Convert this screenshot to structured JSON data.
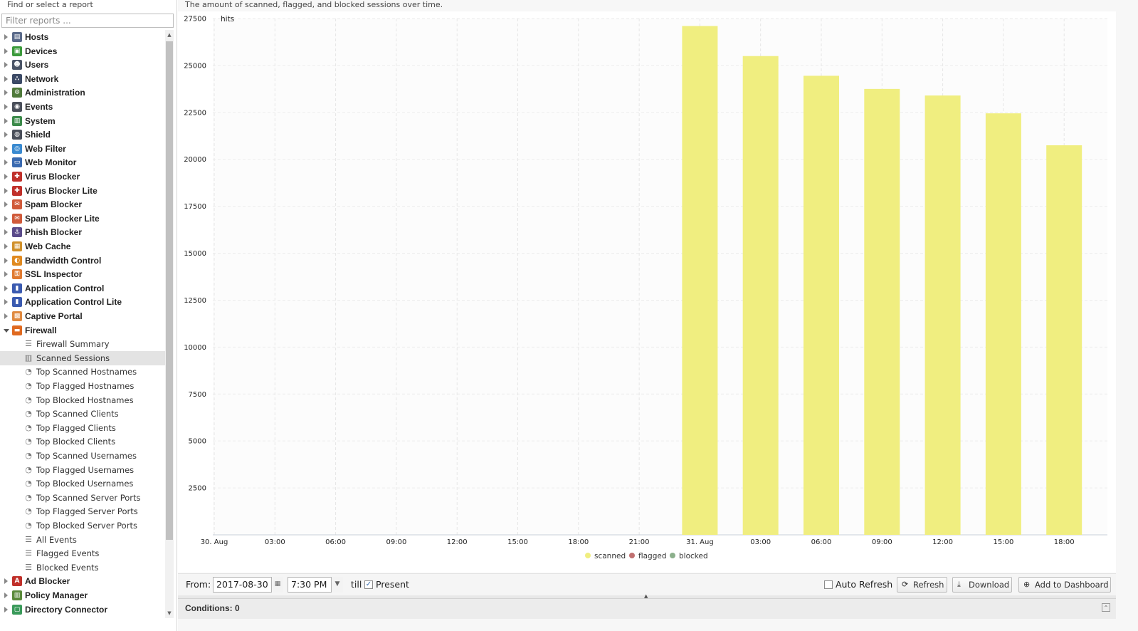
{
  "sidebar": {
    "header": "Find or select a report",
    "filter_placeholder": "Filter reports ...",
    "categories_top": [
      {
        "label": "Hosts",
        "icon": "hosts-icon",
        "color": "#5a6a8a",
        "glyph": "▤"
      },
      {
        "label": "Devices",
        "icon": "devices-icon",
        "color": "#3b9a3b",
        "glyph": "▣"
      },
      {
        "label": "Users",
        "icon": "users-icon",
        "color": "#4a5466",
        "glyph": "☻"
      },
      {
        "label": "Network",
        "icon": "network-icon",
        "color": "#3c4a66",
        "glyph": "∴"
      },
      {
        "label": "Administration",
        "icon": "administration-icon",
        "color": "#4f7a3a",
        "glyph": "⚙"
      },
      {
        "label": "Events",
        "icon": "events-icon",
        "color": "#4a4f5a",
        "glyph": "◉"
      },
      {
        "label": "System",
        "icon": "system-icon",
        "color": "#3b8a4a",
        "glyph": "▥"
      },
      {
        "label": "Shield",
        "icon": "shield-icon",
        "color": "#4a4f5a",
        "glyph": "◍"
      },
      {
        "label": "Web Filter",
        "icon": "web-filter-icon",
        "color": "#3a8ad0",
        "glyph": "◎"
      },
      {
        "label": "Web Monitor",
        "icon": "web-monitor-icon",
        "color": "#3a6ab0",
        "glyph": "▭"
      },
      {
        "label": "Virus Blocker",
        "icon": "virus-blocker-icon",
        "color": "#c0302a",
        "glyph": "✚"
      },
      {
        "label": "Virus Blocker Lite",
        "icon": "virus-blocker-lite-icon",
        "color": "#c0302a",
        "glyph": "✚"
      },
      {
        "label": "Spam Blocker",
        "icon": "spam-blocker-icon",
        "color": "#d05a3a",
        "glyph": "✉"
      },
      {
        "label": "Spam Blocker Lite",
        "icon": "spam-blocker-lite-icon",
        "color": "#d05a3a",
        "glyph": "✉"
      },
      {
        "label": "Phish Blocker",
        "icon": "phish-blocker-icon",
        "color": "#5a4a8a",
        "glyph": "⚓"
      },
      {
        "label": "Web Cache",
        "icon": "web-cache-icon",
        "color": "#d0902a",
        "glyph": "▦"
      },
      {
        "label": "Bandwidth Control",
        "icon": "bandwidth-control-icon",
        "color": "#e08a20",
        "glyph": "◐"
      },
      {
        "label": "SSL Inspector",
        "icon": "ssl-inspector-icon",
        "color": "#e07a30",
        "glyph": "⚿"
      },
      {
        "label": "Application Control",
        "icon": "application-control-icon",
        "color": "#3a5ab0",
        "glyph": "▮"
      },
      {
        "label": "Application Control Lite",
        "icon": "application-control-lite-icon",
        "color": "#3a5ab0",
        "glyph": "▮"
      },
      {
        "label": "Captive Portal",
        "icon": "captive-portal-icon",
        "color": "#e08a40",
        "glyph": "▩"
      }
    ],
    "expanded_category": {
      "label": "Firewall",
      "icon": "firewall-icon",
      "color": "#e06a20",
      "glyph": "▬"
    },
    "firewall_reports": [
      {
        "label": "Firewall Summary",
        "icon": "text-report-icon",
        "glyph": "☰",
        "selected": false
      },
      {
        "label": "Scanned Sessions",
        "icon": "bar-chart-icon",
        "glyph": "▥",
        "selected": true
      },
      {
        "label": "Top Scanned Hostnames",
        "icon": "pie-chart-icon",
        "glyph": "◔",
        "selected": false
      },
      {
        "label": "Top Flagged Hostnames",
        "icon": "pie-chart-icon",
        "glyph": "◔",
        "selected": false
      },
      {
        "label": "Top Blocked Hostnames",
        "icon": "pie-chart-icon",
        "glyph": "◔",
        "selected": false
      },
      {
        "label": "Top Scanned Clients",
        "icon": "pie-chart-icon",
        "glyph": "◔",
        "selected": false
      },
      {
        "label": "Top Flagged Clients",
        "icon": "pie-chart-icon",
        "glyph": "◔",
        "selected": false
      },
      {
        "label": "Top Blocked Clients",
        "icon": "pie-chart-icon",
        "glyph": "◔",
        "selected": false
      },
      {
        "label": "Top Scanned Usernames",
        "icon": "pie-chart-icon",
        "glyph": "◔",
        "selected": false
      },
      {
        "label": "Top Flagged Usernames",
        "icon": "pie-chart-icon",
        "glyph": "◔",
        "selected": false
      },
      {
        "label": "Top Blocked Usernames",
        "icon": "pie-chart-icon",
        "glyph": "◔",
        "selected": false
      },
      {
        "label": "Top Scanned Server Ports",
        "icon": "pie-chart-icon",
        "glyph": "◔",
        "selected": false
      },
      {
        "label": "Top Flagged Server Ports",
        "icon": "pie-chart-icon",
        "glyph": "◔",
        "selected": false
      },
      {
        "label": "Top Blocked Server Ports",
        "icon": "pie-chart-icon",
        "glyph": "◔",
        "selected": false
      },
      {
        "label": "All Events",
        "icon": "list-icon",
        "glyph": "☰",
        "selected": false
      },
      {
        "label": "Flagged Events",
        "icon": "list-icon",
        "glyph": "☰",
        "selected": false
      },
      {
        "label": "Blocked Events",
        "icon": "list-icon",
        "glyph": "☰",
        "selected": false
      }
    ],
    "categories_bottom": [
      {
        "label": "Ad Blocker",
        "icon": "ad-blocker-icon",
        "color": "#c0302a",
        "glyph": "A"
      },
      {
        "label": "Policy Manager",
        "icon": "policy-manager-icon",
        "color": "#5a8a3a",
        "glyph": "▥"
      },
      {
        "label": "Directory Connector",
        "icon": "directory-connector-icon",
        "color": "#3a9a5a",
        "glyph": "▢"
      }
    ]
  },
  "main": {
    "description": "The amount of scanned, flagged, and blocked sessions over time."
  },
  "chart_data": {
    "type": "bar",
    "ylabel": "hits",
    "ylim": [
      0,
      27500
    ],
    "yticks": [
      2500,
      5000,
      7500,
      10000,
      12500,
      15000,
      17500,
      20000,
      22500,
      25000,
      27500
    ],
    "x_tick_labels": [
      "30. Aug",
      "03:00",
      "06:00",
      "09:00",
      "12:00",
      "15:00",
      "18:00",
      "21:00",
      "31. Aug",
      "03:00",
      "06:00",
      "09:00",
      "12:00",
      "15:00",
      "18:00"
    ],
    "categories": [
      "31. Aug 00:00",
      "31. Aug 03:00",
      "31. Aug 06:00",
      "31. Aug 09:00",
      "31. Aug 12:00",
      "31. Aug 15:00",
      "31. Aug 18:00"
    ],
    "series": [
      {
        "name": "scanned",
        "color": "#f0ee80",
        "values": [
          27100,
          25500,
          24450,
          23750,
          23400,
          22450,
          20750
        ]
      },
      {
        "name": "flagged",
        "color": "#c07070",
        "values": [
          0,
          0,
          0,
          0,
          0,
          0,
          0
        ]
      },
      {
        "name": "blocked",
        "color": "#8cb08c",
        "values": [
          0,
          0,
          0,
          0,
          0,
          0,
          0
        ]
      }
    ],
    "grid": true,
    "legend_position": "bottom-center"
  },
  "toolbar": {
    "from_label": "From:",
    "from_date": "2017-08-30",
    "from_time": "7:30 PM",
    "till_label": "till",
    "present_label": "Present",
    "present_checked": true,
    "auto_refresh_label": "Auto Refresh",
    "auto_refresh_checked": false,
    "refresh_label": "Refresh",
    "download_label": "Download",
    "add_dashboard_label": "Add to Dashboard"
  },
  "conditions": {
    "label": "Conditions: 0"
  }
}
